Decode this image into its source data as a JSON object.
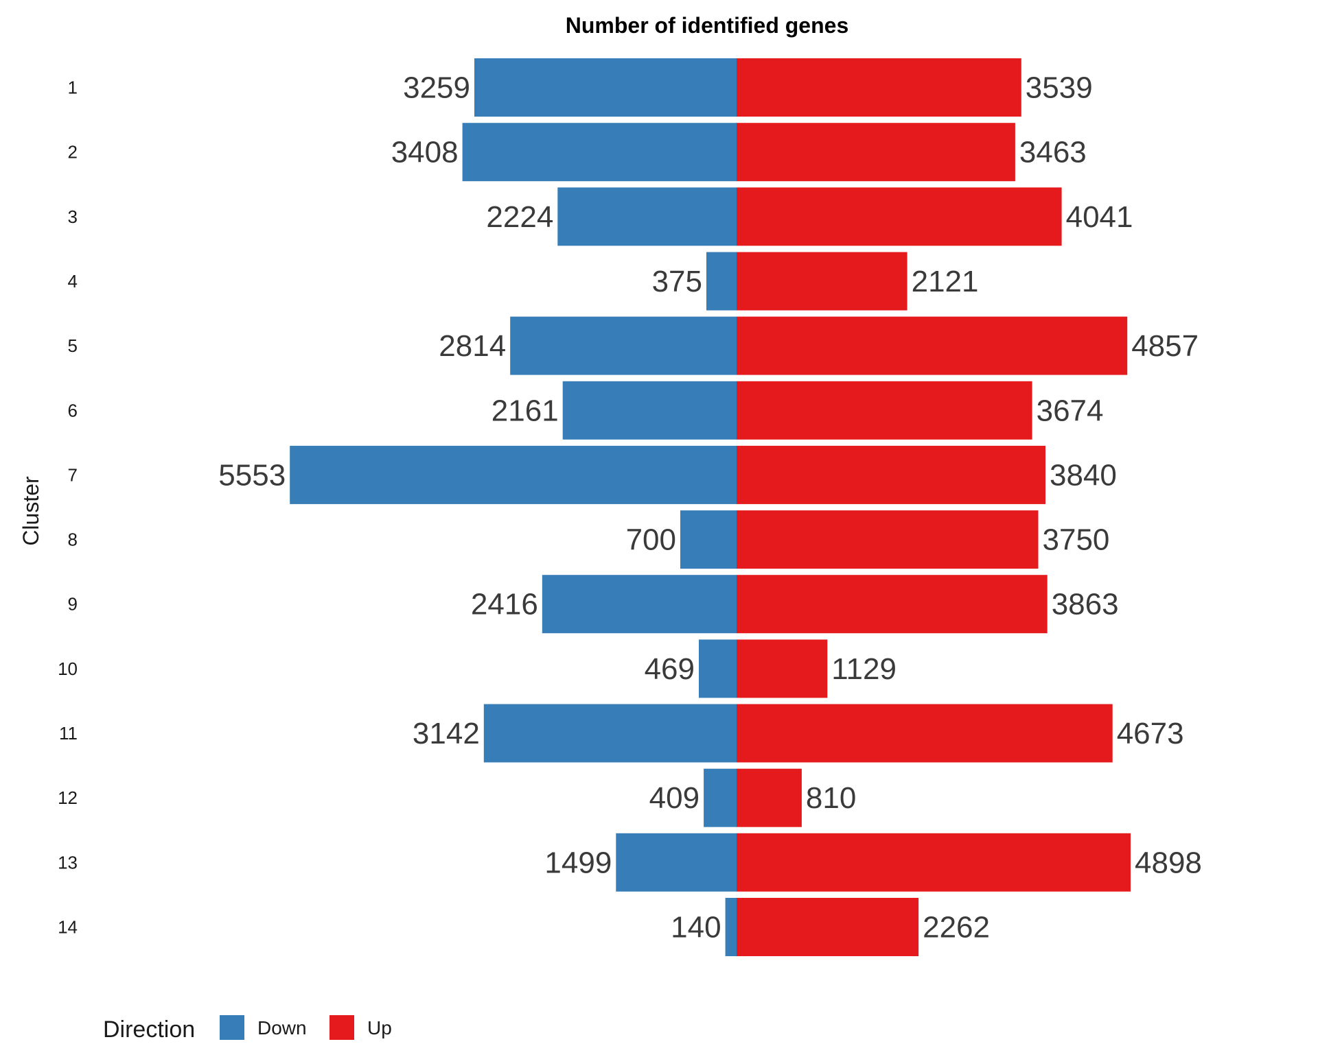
{
  "chart_data": {
    "type": "bar",
    "orientation": "horizontal",
    "layout": "diverging",
    "title": "Number of identified genes",
    "ylabel": "Cluster",
    "xlabel": "",
    "categories": [
      "1",
      "2",
      "3",
      "4",
      "5",
      "6",
      "7",
      "8",
      "9",
      "10",
      "11",
      "12",
      "13",
      "14"
    ],
    "series": [
      {
        "name": "Down",
        "color": "#377EB8",
        "side": "left",
        "values": [
          3259,
          3408,
          2224,
          375,
          2814,
          2161,
          5553,
          700,
          2416,
          469,
          3142,
          409,
          1499,
          140
        ]
      },
      {
        "name": "Up",
        "color": "#E41A1C",
        "side": "right",
        "values": [
          3539,
          3463,
          4041,
          2121,
          4857,
          3674,
          3840,
          3750,
          3863,
          1129,
          4673,
          810,
          4898,
          2262
        ]
      }
    ],
    "legend": {
      "title": "Direction",
      "position": "bottom-left",
      "entries": [
        "Down",
        "Up"
      ]
    },
    "grid": false,
    "x_axis_visible": false
  }
}
